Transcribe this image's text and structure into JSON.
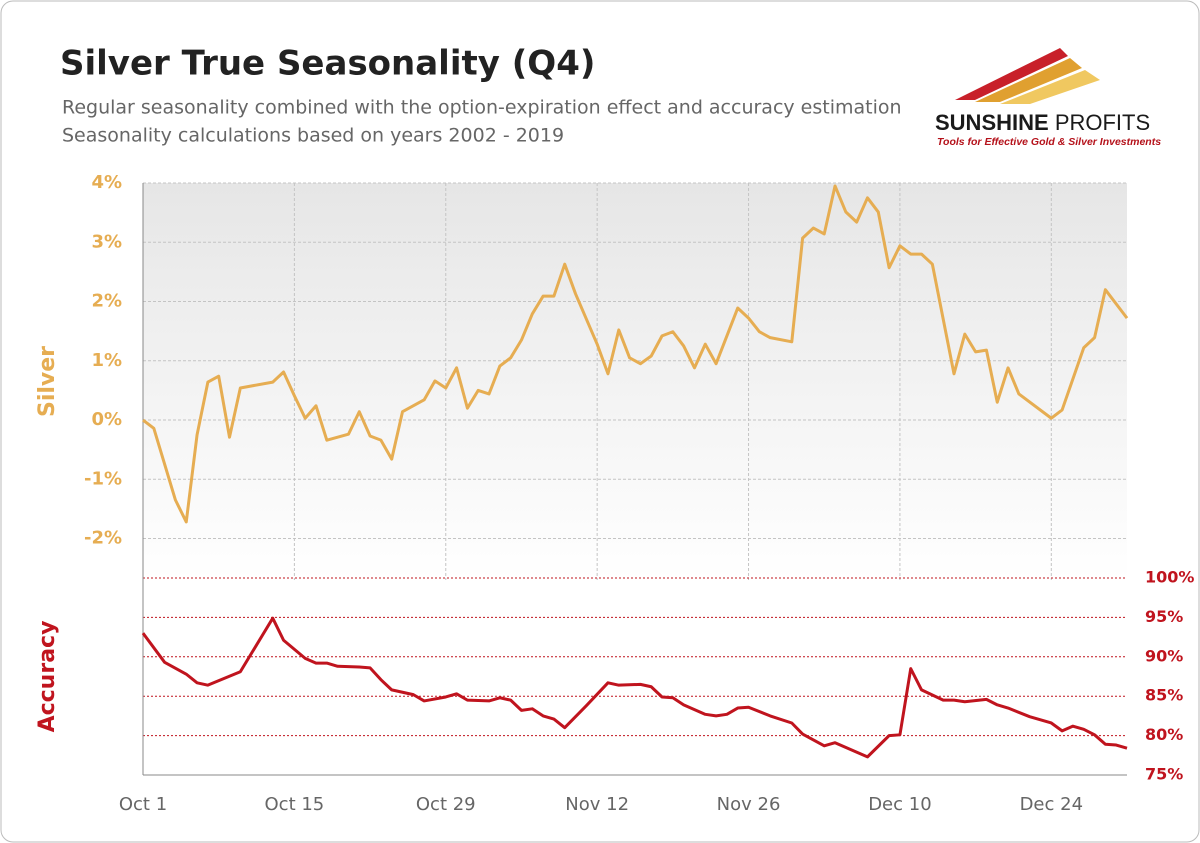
{
  "chart_data": {
    "type": "line",
    "title": "Silver True Seasonality (Q4)",
    "subtitle": [
      "Regular seasonality combined with the option-expiration effect and accuracy estimation",
      "Seasonality calculations based on years 2002 - 2019"
    ],
    "xlim": [
      0,
      91
    ],
    "xticks": [
      {
        "value": 0,
        "label": "Oct 1"
      },
      {
        "value": 14,
        "label": "Oct 15"
      },
      {
        "value": 28,
        "label": "Oct 29"
      },
      {
        "value": 42,
        "label": "Nov 12"
      },
      {
        "value": 56,
        "label": "Nov 26"
      },
      {
        "value": 70,
        "label": "Dec 10"
      },
      {
        "value": 84,
        "label": "Dec 24"
      }
    ],
    "ylim": [
      -2.7,
      4
    ],
    "yticks": [
      {
        "value": 4,
        "label": "4%"
      },
      {
        "value": 3,
        "label": "3%"
      },
      {
        "value": 2,
        "label": "2%"
      },
      {
        "value": 1,
        "label": "1%"
      },
      {
        "value": 0,
        "label": "0%"
      },
      {
        "value": -1,
        "label": "-1%"
      },
      {
        "value": -2,
        "label": "-2%"
      }
    ],
    "y2lim": [
      75,
      100
    ],
    "y2ticks": [
      {
        "value": 100,
        "label": "100%"
      },
      {
        "value": 95,
        "label": "95%"
      },
      {
        "value": 90,
        "label": "90%"
      },
      {
        "value": 85,
        "label": "85%"
      },
      {
        "value": 80,
        "label": "80%"
      },
      {
        "value": 75,
        "label": "75%"
      }
    ],
    "grid": true,
    "series": [
      {
        "name": "Silver",
        "color": "#e6ad52",
        "x": [
          0,
          1,
          3,
          4,
          5,
          6,
          7,
          8,
          9,
          12,
          13,
          14,
          15,
          16,
          17,
          19,
          20,
          21,
          22,
          23,
          24,
          26,
          27,
          28,
          29,
          30,
          31,
          32,
          33,
          34,
          35,
          36,
          37,
          38,
          39,
          40,
          42,
          43,
          44,
          45,
          46,
          47,
          48,
          49,
          50,
          51,
          52,
          53,
          55,
          56,
          57,
          58,
          60,
          61,
          62,
          63,
          64,
          65,
          66,
          67,
          68,
          69,
          70,
          71,
          72,
          73,
          75,
          76,
          77,
          78,
          79,
          80,
          81,
          84,
          85,
          87,
          88,
          89,
          91
        ],
        "values": [
          0,
          -0.14,
          -1.35,
          -1.72,
          -0.25,
          0.64,
          0.74,
          -0.29,
          0.54,
          0.64,
          0.81,
          0.41,
          0.03,
          0.24,
          -0.34,
          -0.24,
          0.14,
          -0.27,
          -0.34,
          -0.66,
          0.14,
          0.34,
          0.66,
          0.54,
          0.88,
          0.2,
          0.5,
          0.44,
          0.91,
          1.05,
          1.35,
          1.79,
          2.09,
          2.09,
          2.63,
          2.13,
          1.28,
          0.78,
          1.52,
          1.05,
          0.95,
          1.08,
          1.42,
          1.49,
          1.25,
          0.88,
          1.28,
          0.95,
          1.89,
          1.72,
          1.49,
          1.39,
          1.32,
          3.07,
          3.24,
          3.14,
          3.95,
          3.51,
          3.34,
          3.75,
          3.51,
          2.57,
          2.94,
          2.8,
          2.8,
          2.63,
          0.78,
          1.45,
          1.15,
          1.18,
          0.3,
          0.88,
          0.44,
          0.03,
          0.17,
          1.22,
          1.39,
          2.2,
          1.72
        ]
      },
      {
        "name": "Accuracy",
        "color": "#c0141e",
        "axis": "y2",
        "x": [
          0,
          2,
          4,
          5,
          6,
          9,
          12,
          13,
          15,
          16,
          17,
          18,
          20,
          21,
          22,
          23,
          25,
          26,
          28,
          29,
          30,
          32,
          33,
          34,
          35,
          36,
          37,
          38,
          39,
          41,
          43,
          44,
          46,
          47,
          48,
          49,
          50,
          52,
          53,
          54,
          55,
          56,
          58,
          60,
          61,
          63,
          64,
          67,
          69,
          70,
          71,
          72,
          74,
          75,
          76,
          78,
          79,
          80,
          82,
          84,
          85,
          86,
          87,
          88,
          89,
          90,
          91
        ],
        "values": [
          93,
          89.3,
          87.8,
          86.7,
          86.4,
          88.1,
          94.9,
          92.1,
          89.8,
          89.2,
          89.2,
          88.8,
          88.7,
          88.6,
          87.1,
          85.8,
          85.2,
          84.4,
          84.9,
          85.3,
          84.5,
          84.4,
          84.8,
          84.5,
          83.2,
          83.4,
          82.5,
          82.1,
          81,
          83.8,
          86.7,
          86.4,
          86.5,
          86.2,
          84.9,
          84.8,
          83.9,
          82.7,
          82.5,
          82.7,
          83.5,
          83.6,
          82.5,
          81.6,
          80.2,
          78.7,
          79.1,
          77.3,
          80,
          80.1,
          88.5,
          85.8,
          84.5,
          84.5,
          84.3,
          84.6,
          83.9,
          83.5,
          82.4,
          81.6,
          80.6,
          81.2,
          80.8,
          80.1,
          78.9,
          78.8,
          78.4
        ]
      }
    ]
  },
  "logo": {
    "name": [
      "SUNSHINE",
      "PROFITS"
    ],
    "tagline": "Tools for Effective Gold & Silver Investments"
  }
}
